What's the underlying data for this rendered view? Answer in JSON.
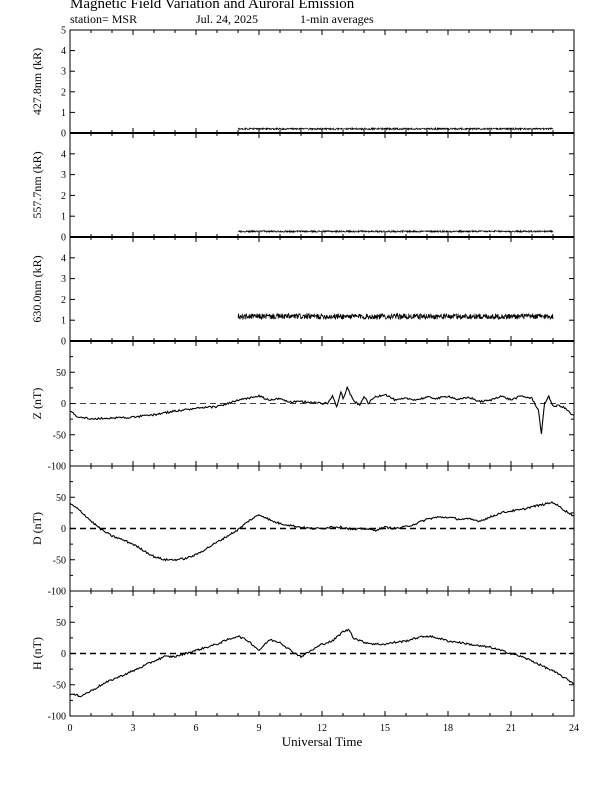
{
  "header": {
    "title": "Magnetic Field Variation and Auroral Emission",
    "station": "station= MSR",
    "date": "Jul.  24,  2025",
    "averages": "1-min averages"
  },
  "chart_data": {
    "type": "line",
    "xlabel": "Universal Time",
    "xlim": [
      0,
      24
    ],
    "xticks": [
      0,
      3,
      6,
      9,
      12,
      15,
      18,
      21,
      24
    ],
    "panels": [
      {
        "id": "p4278",
        "ylabel": "427.8nm (kR)",
        "ylim": [
          0,
          5
        ],
        "yticks": [
          0,
          1,
          2,
          3,
          4,
          5
        ],
        "zero_line": "solid",
        "series": [
          {
            "x": [
              8.0,
              23.0
            ],
            "y": [
              0.2,
              0.2
            ],
            "noise": 0.04
          }
        ]
      },
      {
        "id": "p5577",
        "ylabel": "557.7nm (kR)",
        "ylim": [
          0,
          5
        ],
        "yticks": [
          0,
          1,
          2,
          3,
          4
        ],
        "zero_line": "solid",
        "series": [
          {
            "x": [
              8.0,
              23.0
            ],
            "y": [
              0.27,
              0.27
            ],
            "noise": 0.04
          }
        ]
      },
      {
        "id": "p6300",
        "ylabel": "630.0nm (kR)",
        "ylim": [
          0,
          5
        ],
        "yticks": [
          0,
          1,
          2,
          3,
          4
        ],
        "zero_line": "solid",
        "series": [
          {
            "x": [
              8.0,
              23.0
            ],
            "y": [
              1.18,
              1.18
            ],
            "noise": 0.14
          }
        ]
      },
      {
        "id": "pZ",
        "ylabel": "Z (nT)",
        "ylim": [
          -100,
          100
        ],
        "yticks": [
          -100,
          -50,
          0,
          50
        ],
        "zero_line": "dashed",
        "series": [
          {
            "x": [
              0,
              0.3,
              1.0,
              2.0,
              3.0,
              4.0,
              5.0,
              6.0,
              7.0,
              8.0,
              9.0,
              9.5,
              10.0,
              10.5,
              11.0,
              11.5,
              12.0,
              12.3,
              12.5,
              12.7,
              12.9,
              13.0,
              13.2,
              13.5,
              13.8,
              14.0,
              14.2,
              14.5,
              15.0,
              15.5,
              16.0,
              16.5,
              17.0,
              17.5,
              18.0,
              18.5,
              19.0,
              19.5,
              20.0,
              20.5,
              21.0,
              21.5,
              22.0,
              22.3,
              22.45,
              22.6,
              22.8,
              23.0,
              23.3,
              23.6,
              23.8,
              24.0
            ],
            "y": [
              -12,
              -20,
              -25,
              -23,
              -22,
              -18,
              -12,
              -8,
              -5,
              5,
              12,
              5,
              8,
              2,
              3,
              2,
              0,
              1,
              12,
              -5,
              20,
              8,
              25,
              5,
              -3,
              12,
              0,
              10,
              15,
              5,
              8,
              6,
              10,
              8,
              12,
              6,
              10,
              3,
              5,
              12,
              6,
              12,
              8,
              -10,
              -48,
              0,
              12,
              -5,
              -3,
              -8,
              -15,
              -20
            ]
          }
        ]
      },
      {
        "id": "pD",
        "ylabel": "D (nT)",
        "ylim": [
          -100,
          100
        ],
        "yticks": [
          -100,
          -50,
          0,
          50
        ],
        "zero_line": "dashed",
        "series": [
          {
            "x": [
              0,
              0.5,
              1.0,
              1.5,
              2.0,
              2.5,
              3.0,
              3.5,
              4.0,
              4.5,
              5.0,
              5.5,
              6.0,
              6.5,
              7.0,
              7.5,
              8.0,
              8.5,
              9.0,
              9.3,
              9.6,
              10.0,
              10.5,
              11.0,
              11.5,
              12.0,
              12.5,
              13.0,
              13.5,
              14.0,
              14.5,
              15.0,
              15.5,
              16.0,
              16.5,
              17.0,
              17.5,
              18.0,
              18.5,
              19.0,
              19.5,
              20.0,
              20.5,
              21.0,
              21.5,
              22.0,
              22.5,
              23.0,
              23.3,
              23.6,
              24.0
            ],
            "y": [
              40,
              28,
              12,
              -2,
              -12,
              -18,
              -25,
              -35,
              -45,
              -50,
              -50,
              -48,
              -42,
              -32,
              -22,
              -12,
              -2,
              12,
              22,
              18,
              12,
              8,
              5,
              2,
              0,
              0,
              3,
              2,
              -2,
              0,
              -3,
              2,
              0,
              3,
              8,
              15,
              18,
              18,
              15,
              15,
              12,
              18,
              25,
              28,
              30,
              35,
              38,
              42,
              35,
              28,
              20
            ]
          }
        ]
      },
      {
        "id": "pH",
        "ylabel": "H (nT)",
        "ylim": [
          -100,
          100
        ],
        "yticks": [
          -100,
          -50,
          0,
          50
        ],
        "zero_line": "dashed",
        "series": [
          {
            "x": [
              0,
              0.5,
              1.0,
              1.5,
              2.0,
              2.5,
              3.0,
              3.5,
              4.0,
              4.5,
              5.0,
              5.5,
              6.0,
              6.5,
              7.0,
              7.5,
              8.0,
              8.5,
              9.0,
              9.5,
              10.0,
              10.5,
              11.0,
              11.5,
              12.0,
              12.5,
              13.0,
              13.3,
              13.5,
              14.0,
              14.5,
              15.0,
              15.5,
              16.0,
              16.5,
              17.0,
              17.5,
              18.0,
              18.5,
              19.0,
              19.5,
              20.0,
              20.5,
              21.0,
              21.5,
              22.0,
              22.5,
              23.0,
              23.5,
              24.0
            ],
            "y": [
              -65,
              -68,
              -60,
              -50,
              -42,
              -35,
              -28,
              -20,
              -12,
              -5,
              -5,
              0,
              5,
              10,
              15,
              22,
              28,
              20,
              5,
              22,
              18,
              5,
              -5,
              5,
              15,
              20,
              35,
              38,
              25,
              18,
              15,
              15,
              18,
              20,
              25,
              28,
              25,
              20,
              18,
              15,
              12,
              10,
              5,
              0,
              -5,
              -12,
              -20,
              -28,
              -38,
              -48
            ]
          }
        ]
      }
    ]
  }
}
